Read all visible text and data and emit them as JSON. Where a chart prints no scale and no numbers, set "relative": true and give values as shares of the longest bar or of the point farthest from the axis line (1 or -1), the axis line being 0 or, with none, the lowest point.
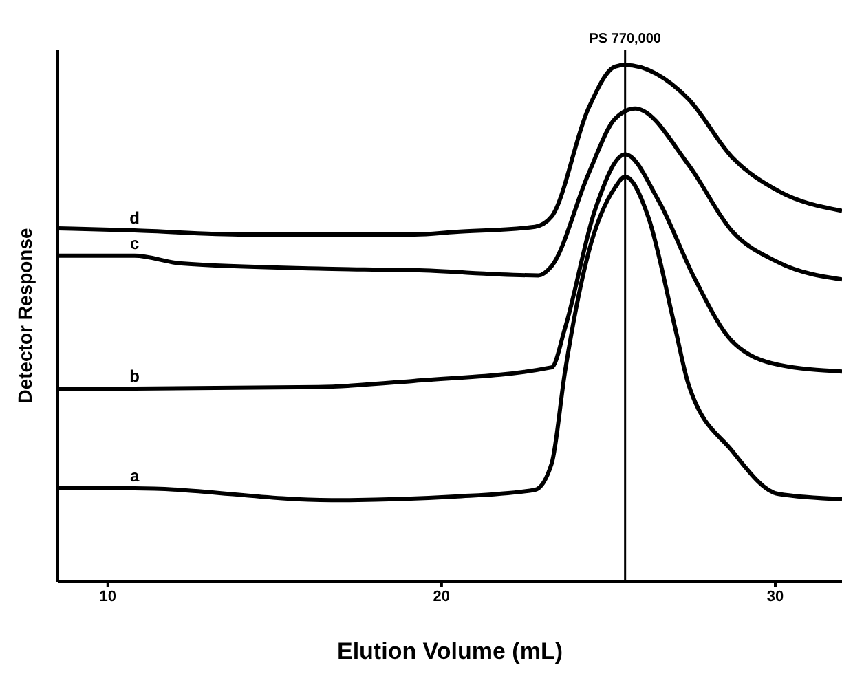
{
  "chart_data": {
    "type": "line",
    "xlabel": "Elution Volume (mL)",
    "ylabel": "Detector Response",
    "relative": true,
    "xlim": [
      8.5,
      32
    ],
    "xticks": [
      10,
      20,
      30
    ],
    "marker": "none",
    "line_style": "solid",
    "series": [
      {
        "name": "d",
        "color": "#000000",
        "x": [
          8.5,
          10.8,
          14.1,
          19.2,
          20.4,
          22.8,
          23.3,
          24.4,
          25.2,
          25.5,
          27.4,
          28.7,
          30.1,
          32
        ],
        "values": [
          0.684,
          0.68,
          0.672,
          0.672,
          0.677,
          0.687,
          0.707,
          0.916,
          0.997,
          1,
          0.934,
          0.822,
          0.756,
          0.718
        ]
      },
      {
        "name": "c",
        "color": "#000000",
        "x": [
          8.5,
          10.8,
          12.2,
          16.3,
          19.2,
          22.9,
          23.3,
          24.4,
          25.2,
          25.8,
          27.4,
          28.7,
          30.1,
          32
        ],
        "values": [
          0.631,
          0.631,
          0.616,
          0.606,
          0.603,
          0.593,
          0.611,
          0.789,
          0.896,
          0.916,
          0.807,
          0.679,
          0.618,
          0.585
        ]
      },
      {
        "name": "b",
        "color": "#000000",
        "x": [
          8.5,
          10.8,
          16.3,
          19.2,
          23.3,
          23.7,
          24.6,
          25.5,
          26.5,
          27.6,
          28.7,
          30.1,
          32
        ],
        "values": [
          0.374,
          0.374,
          0.377,
          0.389,
          0.415,
          0.491,
          0.72,
          0.827,
          0.738,
          0.585,
          0.466,
          0.42,
          0.407
        ]
      },
      {
        "name": "a",
        "color": "#000000",
        "x": [
          8.5,
          10.8,
          16.7,
          20.4,
          22.8,
          23.3,
          23.7,
          24.4,
          25.2,
          25.5,
          26.2,
          27,
          27.4,
          28.7,
          30.1,
          32
        ],
        "values": [
          0.181,
          0.181,
          0.158,
          0.165,
          0.178,
          0.229,
          0.407,
          0.636,
          0.763,
          0.784,
          0.705,
          0.491,
          0.382,
          0.254,
          0.17,
          0.16
        ]
      }
    ],
    "ref_lines": [
      {
        "axis": "x",
        "value": 25.5,
        "label": "PS 770,000",
        "color": "#000000"
      }
    ]
  }
}
